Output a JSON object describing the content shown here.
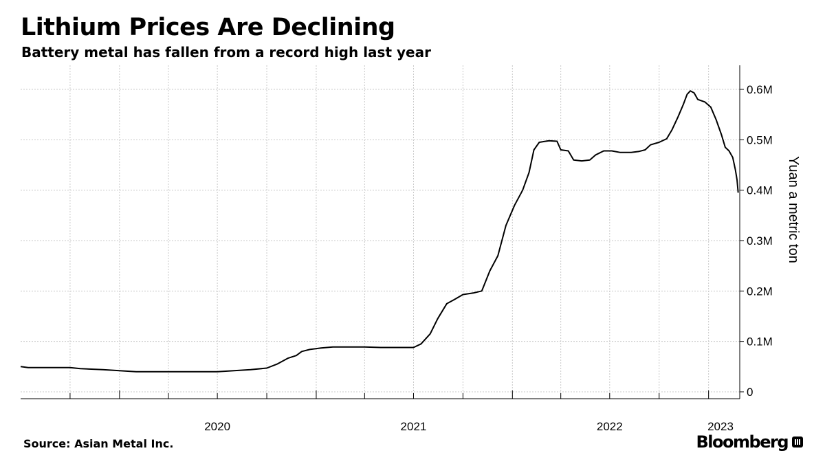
{
  "header": {
    "title": "Lithium Prices Are Declining",
    "subtitle": "Battery metal has fallen from a record high last year"
  },
  "footer": {
    "source": "Source: Asian Metal Inc.",
    "brand": "Bloomberg",
    "brand_icon": "bloomberg-terminal-icon"
  },
  "chart_data": {
    "type": "line",
    "title": "Lithium Prices Are Declining",
    "subtitle": "Battery metal has fallen from a record high last year",
    "xlabel": "",
    "ylabel": "Yuan a metric ton",
    "y_axis_side": "right",
    "xlim": [
      "2019-07-01",
      "2023-02-28"
    ],
    "ylim": [
      0,
      650000
    ],
    "grid": true,
    "line_color": "#000000",
    "x_ticks": [
      {
        "date": "2020-01-01",
        "label": "2020"
      },
      {
        "date": "2021-01-01",
        "label": "2021"
      },
      {
        "date": "2022-01-01",
        "label": "2022"
      },
      {
        "date": "2023-01-01",
        "label": "2023"
      }
    ],
    "x_minor_ticks": [
      "2019-10-01",
      "2020-04-01",
      "2020-07-01",
      "2020-10-01",
      "2021-04-01",
      "2021-07-01",
      "2021-10-01",
      "2022-04-01",
      "2022-07-01",
      "2022-10-01"
    ],
    "y_ticks": [
      {
        "value": 0,
        "label": "0"
      },
      {
        "value": 100000,
        "label": "0.1M"
      },
      {
        "value": 200000,
        "label": "0.2M"
      },
      {
        "value": 300000,
        "label": "0.3M"
      },
      {
        "value": 400000,
        "label": "0.4M"
      },
      {
        "value": 500000,
        "label": "0.5M"
      },
      {
        "value": 600000,
        "label": "0.6M"
      }
    ],
    "series": [
      {
        "points": [
          [
            "2019-07-01",
            50000
          ],
          [
            "2019-07-15",
            48000
          ],
          [
            "2019-10-01",
            48000
          ],
          [
            "2019-10-20",
            46000
          ],
          [
            "2019-12-01",
            44000
          ],
          [
            "2020-01-01",
            42000
          ],
          [
            "2020-02-01",
            40000
          ],
          [
            "2020-04-01",
            40000
          ],
          [
            "2020-07-01",
            40000
          ],
          [
            "2020-08-01",
            42000
          ],
          [
            "2020-09-01",
            44000
          ],
          [
            "2020-10-01",
            47000
          ],
          [
            "2020-10-20",
            55000
          ],
          [
            "2020-11-10",
            67000
          ],
          [
            "2020-11-25",
            72000
          ],
          [
            "2020-12-05",
            80000
          ],
          [
            "2020-12-20",
            84000
          ],
          [
            "2021-01-10",
            87000
          ],
          [
            "2021-02-01",
            89000
          ],
          [
            "2021-04-01",
            89000
          ],
          [
            "2021-05-01",
            88000
          ],
          [
            "2021-06-15",
            88000
          ],
          [
            "2021-07-01",
            88000
          ],
          [
            "2021-07-15",
            95000
          ],
          [
            "2021-08-01",
            115000
          ],
          [
            "2021-08-15",
            145000
          ],
          [
            "2021-09-01",
            175000
          ],
          [
            "2021-09-15",
            183000
          ],
          [
            "2021-10-01",
            193000
          ],
          [
            "2021-10-20",
            196000
          ],
          [
            "2021-11-05",
            200000
          ],
          [
            "2021-11-20",
            240000
          ],
          [
            "2021-12-05",
            270000
          ],
          [
            "2021-12-20",
            330000
          ],
          [
            "2022-01-05",
            370000
          ],
          [
            "2022-01-20",
            400000
          ],
          [
            "2022-02-01",
            435000
          ],
          [
            "2022-02-10",
            480000
          ],
          [
            "2022-02-20",
            495000
          ],
          [
            "2022-03-10",
            498000
          ],
          [
            "2022-03-25",
            497000
          ],
          [
            "2022-04-01",
            480000
          ],
          [
            "2022-04-15",
            478000
          ],
          [
            "2022-04-25",
            460000
          ],
          [
            "2022-05-10",
            458000
          ],
          [
            "2022-05-25",
            460000
          ],
          [
            "2022-06-05",
            470000
          ],
          [
            "2022-06-20",
            478000
          ],
          [
            "2022-07-05",
            478000
          ],
          [
            "2022-07-20",
            475000
          ],
          [
            "2022-08-10",
            475000
          ],
          [
            "2022-08-25",
            477000
          ],
          [
            "2022-09-05",
            480000
          ],
          [
            "2022-09-15",
            490000
          ],
          [
            "2022-10-01",
            495000
          ],
          [
            "2022-10-15",
            502000
          ],
          [
            "2022-10-25",
            520000
          ],
          [
            "2022-11-05",
            545000
          ],
          [
            "2022-11-15",
            570000
          ],
          [
            "2022-11-22",
            590000
          ],
          [
            "2022-11-28",
            597000
          ],
          [
            "2022-12-05",
            593000
          ],
          [
            "2022-12-12",
            580000
          ],
          [
            "2022-12-25",
            575000
          ],
          [
            "2023-01-05",
            565000
          ],
          [
            "2023-01-15",
            540000
          ],
          [
            "2023-01-25",
            510000
          ],
          [
            "2023-02-01",
            485000
          ],
          [
            "2023-02-08",
            478000
          ],
          [
            "2023-02-15",
            465000
          ],
          [
            "2023-02-20",
            440000
          ],
          [
            "2023-02-23",
            420000
          ],
          [
            "2023-02-25",
            395000
          ]
        ]
      }
    ]
  }
}
